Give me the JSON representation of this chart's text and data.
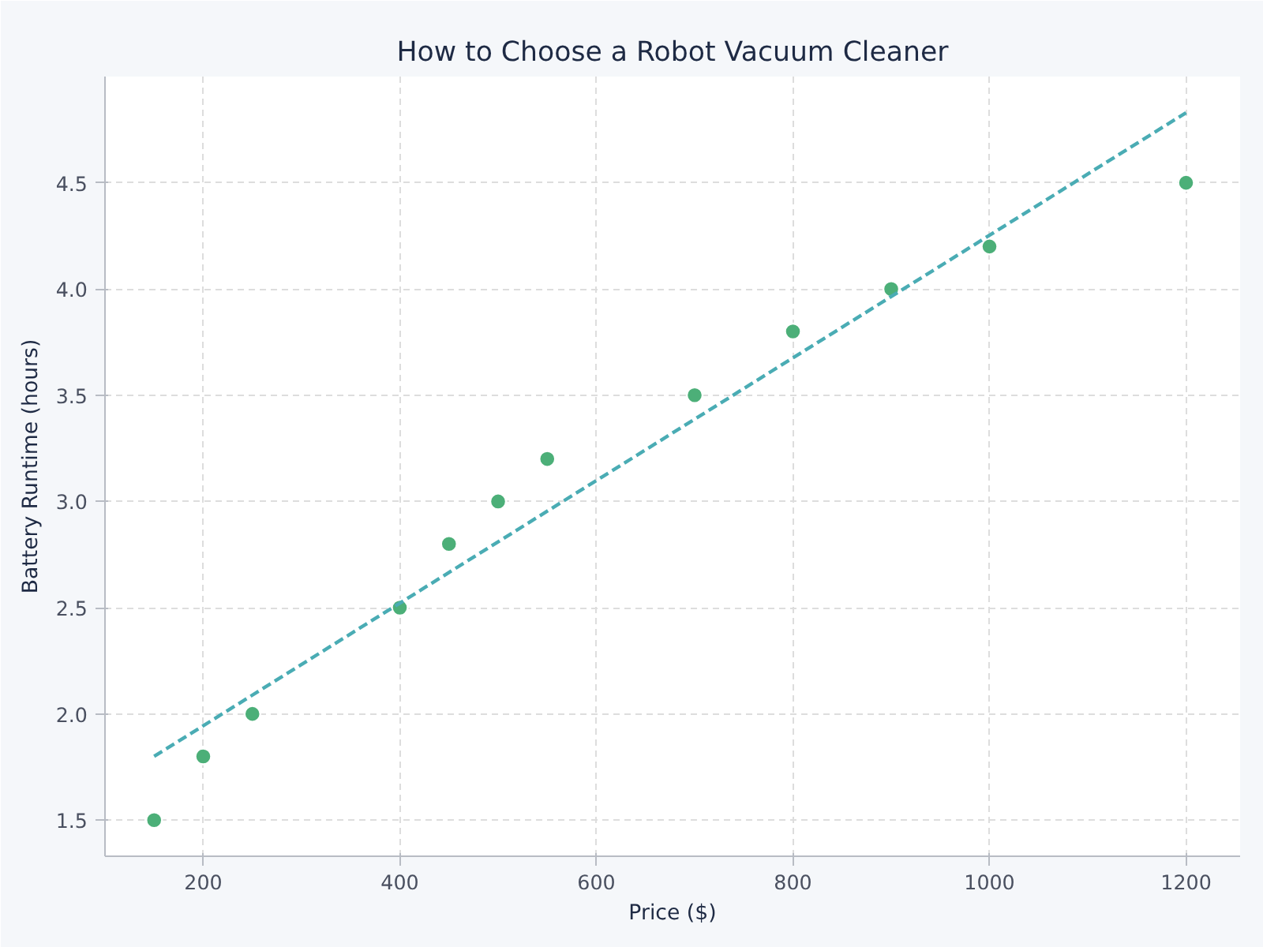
{
  "chart_data": {
    "type": "scatter",
    "title": "How to Choose a Robot Vacuum Cleaner",
    "xlabel": "Price ($)",
    "ylabel": "Battery Runtime (hours)",
    "xlim": [
      100,
      1255
    ],
    "ylim": [
      1.33,
      5.0
    ],
    "xticks": [
      200,
      400,
      600,
      800,
      1000,
      1200
    ],
    "yticks": [
      {
        "value": 1.5,
        "label": "1.5"
      },
      {
        "value": 2.0,
        "label": "2.0"
      },
      {
        "value": 2.5,
        "label": "2.5"
      },
      {
        "value": 3.0,
        "label": "3.0"
      },
      {
        "value": 3.5,
        "label": "3.5"
      },
      {
        "value": 4.0,
        "label": "4.0"
      },
      {
        "value": 4.5,
        "label": "4.5"
      }
    ],
    "grid": true,
    "marker": "circle",
    "series": [
      {
        "color": "#4caf78",
        "x": [
          150,
          200,
          250,
          400,
          450,
          500,
          550,
          700,
          800,
          900,
          1000,
          1200
        ],
        "values": [
          1.5,
          1.8,
          2.0,
          2.5,
          2.8,
          3.0,
          3.2,
          3.5,
          3.8,
          4.0,
          4.2,
          4.5
        ]
      },
      {
        "type": "line",
        "color": "#4aacb4",
        "line_style": "dashed",
        "marker": "none",
        "x": [
          150,
          1200
        ],
        "values": [
          1.8,
          4.83
        ]
      }
    ]
  }
}
